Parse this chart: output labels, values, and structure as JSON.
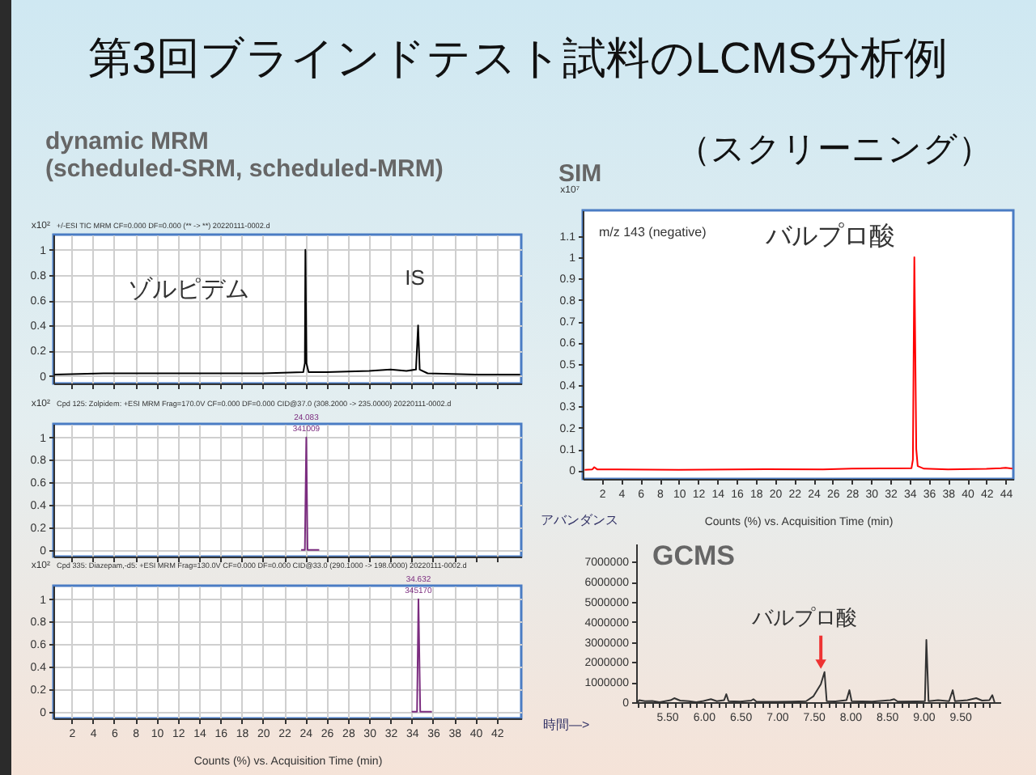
{
  "chart_data": [
    {
      "type": "line",
      "title": "第3回ブラインドテスト試料のLCMS分析例",
      "annotations": [
        "dynamic MRM",
        "(scheduled-SRM, scheduled-MRM)",
        "+/-ESI TIC MRM CF=0.000 DF=0.000 (** -> **) 20220111-0002.d",
        "x10²",
        {
          "text": "ゾルピデム",
          "x": 24.0,
          "y": 1.0
        },
        {
          "text": "IS",
          "x": 34.6,
          "y": 0.4
        }
      ],
      "xlim": [
        0.3,
        44.3
      ],
      "xticks": [
        2,
        4,
        6,
        8,
        10,
        12,
        14,
        16,
        18,
        20,
        22,
        24,
        26,
        28,
        30,
        32,
        34,
        36,
        38,
        40,
        42
      ],
      "ylim": [
        -0.06,
        1.12
      ],
      "yticks": [
        0,
        0.2,
        0.4,
        0.6,
        0.8,
        1
      ],
      "grid": true,
      "tick_labels": "y",
      "series": [
        {
          "color": "#000000",
          "x": [
            0.4,
            5,
            10,
            15,
            20,
            23.8,
            23.95,
            24.0,
            24.1,
            24.3,
            26,
            30,
            32,
            33.5,
            34.4,
            34.6,
            34.75,
            35.5,
            40,
            44.2
          ],
          "values": [
            0.01,
            0.02,
            0.02,
            0.02,
            0.02,
            0.03,
            0.1,
            1.0,
            0.1,
            0.03,
            0.03,
            0.04,
            0.05,
            0.04,
            0.05,
            0.4,
            0.05,
            0.02,
            0.01,
            0.01
          ]
        }
      ]
    },
    {
      "type": "line",
      "annotations": [
        "Cpd 125: Zolpidem: +ESI MRM Frag=170.0V CF=0.000 DF=0.000 CID@37.0 (308.2000 -> 235.0000) 20220111-0002.d",
        "x10²",
        {
          "text": "24.083",
          "x": 24.083,
          "y": 1.0
        },
        {
          "text": "341009",
          "x": 24.083,
          "y": 1.0
        }
      ],
      "xlim": [
        0.3,
        44.3
      ],
      "xticks": [
        2,
        4,
        6,
        8,
        10,
        12,
        14,
        16,
        18,
        20,
        22,
        24,
        26,
        28,
        30,
        32,
        34,
        36,
        38,
        40,
        42
      ],
      "ylim": [
        -0.06,
        1.12
      ],
      "yticks": [
        0,
        0.2,
        0.4,
        0.6,
        0.8,
        1
      ],
      "grid": true,
      "tick_labels": "y",
      "series": [
        {
          "color": "#7b2c7f",
          "x": [
            23.6,
            23.95,
            24.083,
            24.2,
            25.3
          ],
          "values": [
            0,
            0,
            1.0,
            0,
            0
          ]
        }
      ]
    },
    {
      "type": "line",
      "xlabel": "Counts (%) vs. Acquisition Time (min)",
      "annotations": [
        "Cpd 335: Diazepam,-d5: +ESI MRM Frag=130.0V CF=0.000 DF=0.000 CID@33.0 (290.1000 -> 198.0000) 20220111-0002.d",
        "x10²",
        {
          "text": "34.632",
          "x": 34.632,
          "y": 1.0
        },
        {
          "text": "345170",
          "x": 34.632,
          "y": 1.0
        }
      ],
      "xlim": [
        0.3,
        44.3
      ],
      "xticks": [
        2,
        4,
        6,
        8,
        10,
        12,
        14,
        16,
        18,
        20,
        22,
        24,
        26,
        28,
        30,
        32,
        34,
        36,
        38,
        40,
        42
      ],
      "ylim": [
        -0.06,
        1.12
      ],
      "yticks": [
        0,
        0.2,
        0.4,
        0.6,
        0.8,
        1
      ],
      "grid": true,
      "series": [
        {
          "color": "#7b2c7f",
          "x": [
            34.0,
            34.5,
            34.632,
            34.8,
            35.9
          ],
          "values": [
            0,
            0,
            1.0,
            0,
            0
          ]
        }
      ]
    },
    {
      "type": "line",
      "title": "SIM",
      "subtitle": "（スクリーニング）",
      "xlabel": "Counts (%) vs. Acquisition Time (min)",
      "annotations": [
        "x10⁷",
        "m/z 143 (negative)",
        {
          "text": "バルプロ酸",
          "x": 34.5,
          "y": 1.0
        }
      ],
      "xlim": [
        0,
        44.8
      ],
      "xticks": [
        2,
        4,
        6,
        8,
        10,
        12,
        14,
        16,
        18,
        20,
        22,
        24,
        26,
        28,
        30,
        32,
        34,
        36,
        38,
        40,
        42,
        44
      ],
      "ylim": [
        -0.04,
        1.22
      ],
      "yticks": [
        0,
        0.1,
        0.2,
        0.3,
        0.4,
        0.5,
        0.6,
        0.7,
        0.8,
        0.9,
        1,
        1.1
      ],
      "grid": false,
      "series": [
        {
          "color": "#ff0000",
          "x": [
            0.2,
            1,
            1.2,
            1.5,
            10,
            19,
            25,
            28,
            34.2,
            34.35,
            34.5,
            34.7,
            34.85,
            35.5,
            38,
            42,
            43.5,
            44,
            44.7
          ],
          "values": [
            0.003,
            0.005,
            0.015,
            0.005,
            0.003,
            0.006,
            0.005,
            0.008,
            0.01,
            0.05,
            1.0,
            0.1,
            0.02,
            0.008,
            0.005,
            0.007,
            0.01,
            0.012,
            0.008
          ]
        }
      ]
    },
    {
      "type": "line",
      "title": "GCMS",
      "xlabel": "時間—>",
      "ylabel": "アバンダンス",
      "annotations": [
        {
          "text": "バルプロ酸",
          "x": 7.6,
          "y": 1500000
        }
      ],
      "xlim": [
        5.08,
        10.05
      ],
      "xticks": [
        {
          "value": 5.1,
          "label": null
        },
        {
          "value": 5.2,
          "label": null
        },
        {
          "value": 5.3,
          "label": null
        },
        {
          "value": 5.4,
          "label": null
        },
        {
          "value": 5.5,
          "label": "5.50"
        },
        {
          "value": 5.6,
          "label": null
        },
        {
          "value": 5.7,
          "label": null
        },
        {
          "value": 5.8,
          "label": null
        },
        {
          "value": 5.9,
          "label": null
        },
        {
          "value": 6.0,
          "label": "6.00"
        },
        {
          "value": 6.1,
          "label": null
        },
        {
          "value": 6.2,
          "label": null
        },
        {
          "value": 6.3,
          "label": null
        },
        {
          "value": 6.4,
          "label": null
        },
        {
          "value": 6.5,
          "label": "6.50"
        },
        {
          "value": 6.6,
          "label": null
        },
        {
          "value": 6.7,
          "label": null
        },
        {
          "value": 6.8,
          "label": null
        },
        {
          "value": 6.9,
          "label": null
        },
        {
          "value": 7.0,
          "label": "7.00"
        },
        {
          "value": 7.1,
          "label": null
        },
        {
          "value": 7.2,
          "label": null
        },
        {
          "value": 7.3,
          "label": null
        },
        {
          "value": 7.4,
          "label": null
        },
        {
          "value": 7.5,
          "label": "7.50"
        },
        {
          "value": 7.6,
          "label": null
        },
        {
          "value": 7.7,
          "label": null
        },
        {
          "value": 7.8,
          "label": null
        },
        {
          "value": 7.9,
          "label": null
        },
        {
          "value": 8.0,
          "label": "8.00"
        },
        {
          "value": 8.1,
          "label": null
        },
        {
          "value": 8.2,
          "label": null
        },
        {
          "value": 8.3,
          "label": null
        },
        {
          "value": 8.4,
          "label": null
        },
        {
          "value": 8.5,
          "label": "8.50"
        },
        {
          "value": 8.6,
          "label": null
        },
        {
          "value": 8.7,
          "label": null
        },
        {
          "value": 8.8,
          "label": null
        },
        {
          "value": 8.9,
          "label": null
        },
        {
          "value": 9.0,
          "label": "9.00"
        },
        {
          "value": 9.1,
          "label": null
        },
        {
          "value": 9.2,
          "label": null
        },
        {
          "value": 9.3,
          "label": null
        },
        {
          "value": 9.4,
          "label": null
        },
        {
          "value": 9.5,
          "label": "9.50"
        },
        {
          "value": 9.6,
          "label": null
        },
        {
          "value": 9.7,
          "label": null
        },
        {
          "value": 9.8,
          "label": null
        },
        {
          "value": 9.9,
          "label": null
        }
      ],
      "ylim": [
        0,
        7900000
      ],
      "yticks": [
        0,
        1000000,
        2000000,
        3000000,
        4000000,
        5000000,
        6000000,
        7000000
      ],
      "grid": false,
      "series": [
        {
          "color": "#333333",
          "x": [
            5.1,
            5.12,
            5.2,
            5.3,
            5.4,
            5.55,
            5.6,
            5.68,
            5.8,
            5.9,
            6.0,
            6.1,
            6.18,
            6.28,
            6.31,
            6.34,
            6.5,
            6.65,
            6.68,
            6.72,
            7.0,
            7.2,
            7.4,
            7.5,
            7.6,
            7.65,
            7.68,
            7.8,
            7.95,
            7.99,
            8.02,
            8.3,
            8.55,
            8.6,
            8.65,
            8.9,
            9.02,
            9.04,
            9.07,
            9.2,
            9.35,
            9.4,
            9.43,
            9.6,
            9.72,
            9.8,
            9.9,
            9.94,
            9.97
          ],
          "values": [
            0,
            100000,
            50000,
            60000,
            0,
            100000,
            200000,
            80000,
            50000,
            0,
            60000,
            150000,
            50000,
            100000,
            400000,
            50000,
            30000,
            80000,
            150000,
            30000,
            20000,
            30000,
            50000,
            300000,
            900000,
            1500000,
            50000,
            40000,
            100000,
            600000,
            50000,
            30000,
            100000,
            150000,
            30000,
            40000,
            50000,
            3100000,
            50000,
            100000,
            50000,
            600000,
            50000,
            100000,
            200000,
            80000,
            100000,
            350000,
            0
          ]
        }
      ]
    }
  ]
}
